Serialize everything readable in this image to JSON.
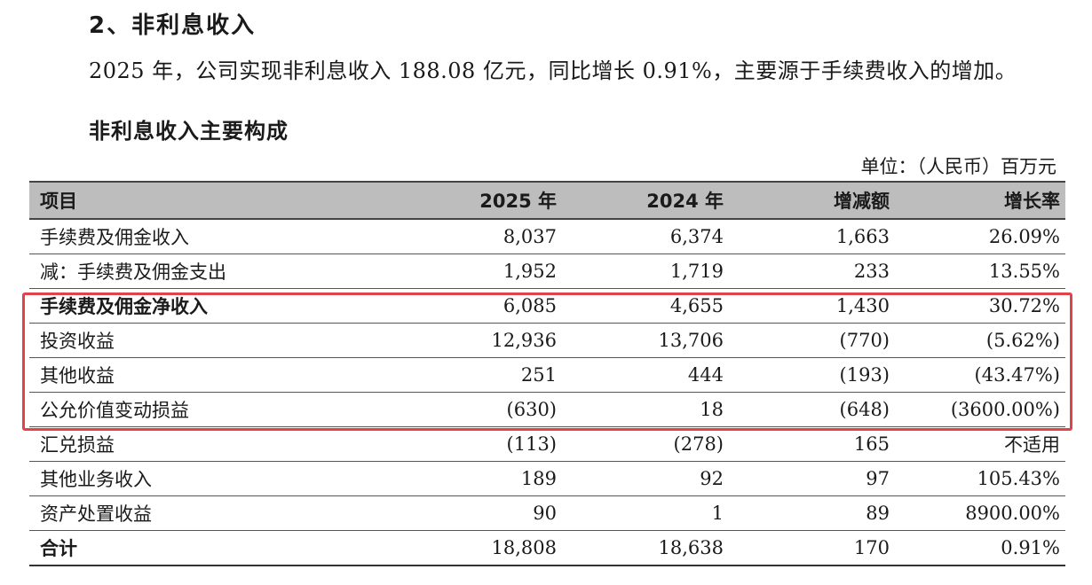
{
  "section_heading": "2、非利息收入",
  "paragraph": "2025 年，公司实现非利息收入 188.08 亿元，同比增长 0.91%，主要源于手续费收入的增加。",
  "table_title": "非利息收入主要构成",
  "unit_note": "单位：（人民币）百万元",
  "table": {
    "headers": {
      "item": "项目",
      "y2025": "2025 年",
      "y2024": "2024 年",
      "change": "增减额",
      "growth": "增长率"
    },
    "rows": [
      {
        "item": "手续费及佣金收入",
        "y2025": "8,037",
        "y2024": "6,374",
        "change": "1,663",
        "growth": "26.09%"
      },
      {
        "item": "减：手续费及佣金支出",
        "y2025": "1,952",
        "y2024": "1,719",
        "change": "233",
        "growth": "13.55%"
      },
      {
        "item": "手续费及佣金净收入",
        "y2025": "6,085",
        "y2024": "4,655",
        "change": "1,430",
        "growth": "30.72%"
      },
      {
        "item": "投资收益",
        "y2025": "12,936",
        "y2024": "13,706",
        "change": "(770)",
        "growth": "(5.62%)"
      },
      {
        "item": "其他收益",
        "y2025": "251",
        "y2024": "444",
        "change": "(193)",
        "growth": "(43.47%)"
      },
      {
        "item": "公允价值变动损益",
        "y2025": "(630)",
        "y2024": "18",
        "change": "(648)",
        "growth": "(3600.00%)"
      },
      {
        "item": "汇兑损益",
        "y2025": "(113)",
        "y2024": "(278)",
        "change": "165",
        "growth": "不适用"
      },
      {
        "item": "其他业务收入",
        "y2025": "189",
        "y2024": "92",
        "change": "97",
        "growth": "105.43%"
      },
      {
        "item": "资产处置收益",
        "y2025": "90",
        "y2024": "1",
        "change": "89",
        "growth": "8900.00%"
      },
      {
        "item": "合计",
        "y2025": "18,808",
        "y2024": "18,638",
        "change": "170",
        "growth": "0.91%"
      }
    ]
  },
  "highlight_color": "#e0434a",
  "header_bg_color": "#bdbdbd"
}
